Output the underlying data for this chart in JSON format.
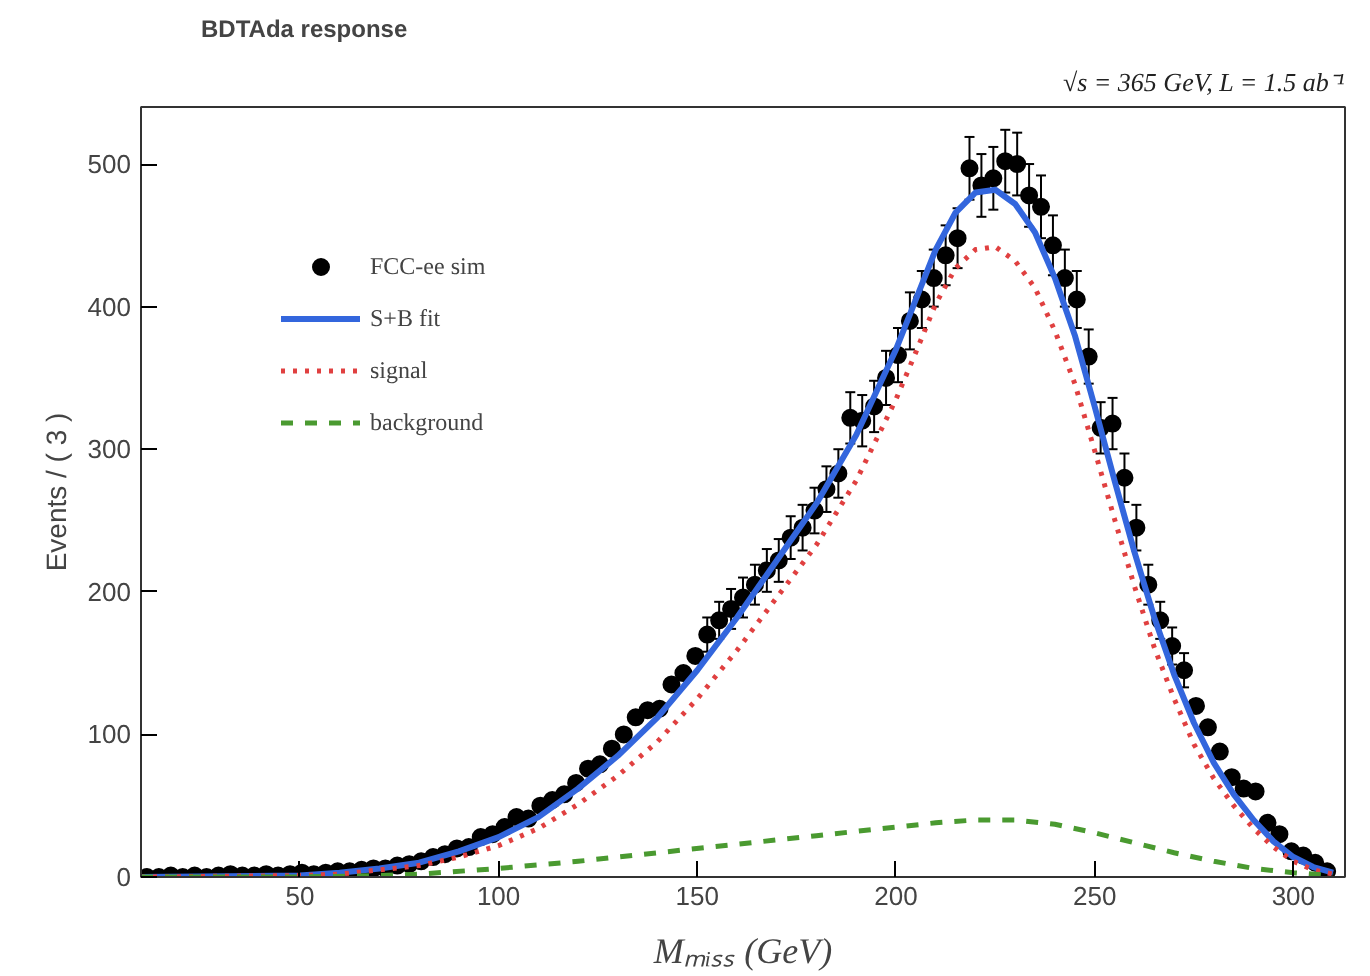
{
  "chart_data": {
    "type": "scatter",
    "title": "BDTAda response",
    "xlabel": "Mₘᵢₛₛ (GeV)",
    "ylabel": "Events / ( 3 )",
    "annotations": [
      "√s = 365 GeV, L = 1.5 ab⁻¹"
    ],
    "xlim": [
      10,
      313
    ],
    "ylim": [
      0,
      540
    ],
    "xticks": [
      50,
      100,
      150,
      200,
      250,
      300
    ],
    "yticks": [
      0,
      100,
      200,
      300,
      400,
      500
    ],
    "grid": false,
    "legend": "top left",
    "marker": "circle",
    "series": [
      {
        "name": "FCC-ee sim",
        "color": "#000000",
        "x": [
          11.5,
          14.5,
          17.5,
          20.5,
          23.5,
          26.5,
          29.5,
          32.5,
          35.5,
          38.5,
          41.5,
          44.5,
          47.5,
          50.5,
          53.5,
          56.5,
          59.5,
          62.5,
          65.5,
          68.5,
          71.5,
          74.5,
          77.5,
          80.5,
          83.5,
          86.5,
          89.5,
          92.5,
          95.5,
          98.5,
          101.5,
          104.5,
          107.5,
          110.5,
          113.5,
          116.5,
          119.5,
          122.5,
          125.5,
          128.5,
          131.5,
          134.5,
          137.5,
          140.5,
          143.5,
          146.5,
          149.5,
          152.5,
          155.5,
          158.5,
          161.5,
          164.5,
          167.5,
          170.5,
          173.5,
          176.5,
          179.5,
          182.5,
          185.5,
          188.5,
          191.5,
          194.5,
          197.5,
          200.5,
          203.5,
          206.5,
          209.5,
          212.5,
          215.5,
          218.5,
          221.5,
          224.5,
          227.5,
          230.5,
          233.5,
          236.5,
          239.5,
          242.5,
          245.5,
          248.5,
          251.5,
          254.5,
          257.5,
          260.5,
          263.5,
          266.5,
          269.5,
          272.5,
          275.5,
          278.5,
          281.5,
          284.5,
          287.5,
          290.5,
          293.5,
          296.5,
          299.5,
          302.5,
          305.5,
          308.5
        ],
        "values": [
          0,
          0,
          1,
          0,
          1,
          0,
          1,
          2,
          1,
          1,
          2,
          1,
          2,
          3,
          2,
          3,
          4,
          4,
          5,
          6,
          6,
          8,
          9,
          11,
          14,
          16,
          20,
          21,
          28,
          30,
          35,
          42,
          41,
          50,
          54,
          58,
          66,
          76,
          79,
          90,
          100,
          112,
          117,
          118,
          135,
          143,
          155,
          170,
          180,
          188,
          196,
          205,
          215,
          222,
          238,
          245,
          257,
          272,
          283,
          322,
          320,
          330,
          350,
          366,
          390,
          405,
          420,
          436,
          448,
          497,
          485,
          490,
          502,
          500,
          478,
          470,
          443,
          420,
          405,
          365,
          315,
          318,
          280,
          245,
          205,
          180,
          162,
          145,
          120,
          105,
          88,
          70,
          62,
          60,
          38,
          30,
          18,
          15,
          10,
          4
        ],
        "errors": [
          null,
          null,
          null,
          null,
          null,
          null,
          null,
          null,
          null,
          null,
          null,
          null,
          null,
          null,
          null,
          null,
          null,
          null,
          null,
          null,
          null,
          null,
          null,
          null,
          null,
          null,
          null,
          null,
          null,
          null,
          null,
          null,
          null,
          null,
          null,
          null,
          null,
          null,
          null,
          null,
          null,
          null,
          null,
          null,
          null,
          null,
          null,
          12,
          13,
          14,
          14,
          14,
          15,
          15,
          15,
          16,
          16,
          16,
          17,
          18,
          18,
          18,
          19,
          19,
          20,
          20,
          20,
          21,
          21,
          22,
          22,
          22,
          22,
          22,
          22,
          22,
          21,
          20,
          20,
          19,
          18,
          18,
          17,
          16,
          14,
          13,
          13,
          12,
          null,
          null,
          null,
          null,
          null,
          null,
          null,
          null,
          null,
          null,
          null,
          null
        ]
      },
      {
        "name": "S+B fit",
        "type": "line",
        "marker": "none",
        "color": "#3366dd",
        "line_style": "solid",
        "x": [
          10,
          50,
          60,
          70,
          80,
          90,
          100,
          110,
          120,
          130,
          140,
          150,
          160,
          170,
          180,
          190,
          200,
          205,
          210,
          215,
          220,
          225,
          230,
          235,
          240,
          245,
          250,
          255,
          260,
          265,
          270,
          275,
          280,
          285,
          290,
          295,
          300,
          305,
          310
        ],
        "values": [
          0,
          1,
          3,
          6,
          10,
          18,
          28,
          42,
          62,
          85,
          112,
          145,
          182,
          222,
          262,
          310,
          370,
          405,
          440,
          466,
          480,
          482,
          472,
          452,
          420,
          380,
          330,
          278,
          228,
          182,
          142,
          108,
          80,
          58,
          40,
          25,
          14,
          7,
          3
        ]
      },
      {
        "name": "signal",
        "type": "line",
        "marker": "none",
        "color": "#e04040",
        "line_style": "dotted",
        "x": [
          10,
          50,
          60,
          70,
          80,
          90,
          100,
          110,
          120,
          130,
          140,
          150,
          160,
          170,
          180,
          190,
          200,
          205,
          210,
          215,
          220,
          225,
          230,
          235,
          240,
          245,
          250,
          255,
          260,
          265,
          270,
          275,
          280,
          285,
          290,
          295,
          300,
          305,
          310
        ],
        "values": [
          0,
          1,
          2,
          5,
          8,
          14,
          22,
          34,
          51,
          71,
          95,
          125,
          159,
          196,
          233,
          278,
          335,
          368,
          402,
          427,
          440,
          442,
          432,
          413,
          383,
          346,
          299,
          251,
          204,
          161,
          125,
          93,
          69,
          50,
          34,
          21,
          11,
          5,
          2
        ]
      },
      {
        "name": "background",
        "type": "line",
        "marker": "none",
        "color": "#4a9a30",
        "line_style": "dashed",
        "x": [
          10,
          50,
          70,
          80,
          100,
          120,
          140,
          160,
          180,
          200,
          210,
          220,
          230,
          240,
          250,
          260,
          270,
          280,
          290,
          300,
          310
        ],
        "values": [
          0,
          0,
          1,
          2,
          6,
          11,
          17,
          23,
          29,
          35,
          38,
          40,
          40,
          37,
          31,
          24,
          17,
          11,
          6,
          3,
          1
        ]
      }
    ]
  }
}
